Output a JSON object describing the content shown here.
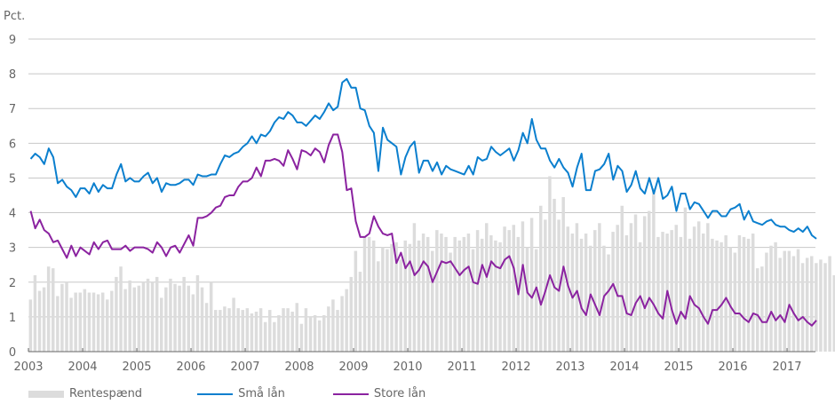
{
  "chart_data": {
    "type": "bar+line",
    "title": "",
    "ylabel": "Pct.",
    "xlabel": "",
    "ylim": [
      0,
      9
    ],
    "yticks": [
      0,
      1,
      2,
      3,
      4,
      5,
      6,
      7,
      8,
      9
    ],
    "grid": true,
    "legend_position": "bottom-left",
    "x_start": "2003-01",
    "x_frequency": "monthly",
    "xtick_labels": [
      "2003",
      "2004",
      "2005",
      "2006",
      "2007",
      "2008",
      "2009",
      "2010",
      "2011",
      "2012",
      "2013",
      "2014",
      "2015",
      "2016",
      "2017"
    ],
    "series": [
      {
        "name": "Rentespænd",
        "type": "bar",
        "color": "#dcdcdc",
        "values": [
          1.5,
          2.2,
          1.75,
          1.85,
          2.45,
          2.4,
          1.6,
          1.95,
          2.0,
          1.55,
          1.7,
          1.7,
          1.8,
          1.7,
          1.7,
          1.65,
          1.7,
          1.5,
          1.75,
          2.15,
          2.45,
          1.8,
          2.05,
          1.85,
          1.9,
          2.0,
          2.1,
          2.0,
          2.15,
          1.55,
          1.85,
          2.1,
          1.95,
          1.9,
          2.15,
          1.9,
          1.65,
          2.2,
          1.85,
          1.4,
          2.0,
          1.2,
          1.2,
          1.3,
          1.25,
          1.55,
          1.25,
          1.2,
          1.25,
          1.1,
          1.15,
          1.25,
          0.85,
          1.2,
          0.85,
          1.05,
          1.25,
          1.25,
          1.15,
          1.4,
          0.8,
          1.25,
          1.0,
          1.05,
          0.9,
          1.05,
          1.3,
          1.5,
          1.2,
          1.6,
          1.8,
          2.15,
          2.9,
          2.3,
          3.3,
          3.3,
          3.2,
          2.6,
          3.0,
          2.95,
          3.1,
          3.15,
          2.65,
          3.2,
          3.1,
          3.7,
          3.2,
          3.4,
          3.3,
          2.9,
          3.5,
          3.4,
          3.3,
          2.85,
          3.3,
          3.2,
          3.3,
          3.4,
          2.95,
          3.5,
          3.25,
          3.7,
          3.35,
          3.2,
          3.15,
          3.6,
          3.5,
          3.65,
          3.3,
          3.75,
          3.0,
          3.85,
          2.95,
          4.2,
          3.8,
          5.05,
          4.4,
          3.8,
          4.45,
          3.6,
          3.4,
          3.7,
          3.25,
          3.4,
          3.05,
          3.5,
          3.7,
          3.05,
          2.8,
          3.45,
          3.65,
          4.2,
          3.35,
          3.7,
          3.95,
          3.15,
          3.9,
          4.05,
          4.7,
          3.3,
          3.45,
          3.4,
          3.5,
          3.65,
          3.3,
          4.15,
          3.25,
          3.6,
          3.75,
          3.4,
          3.7,
          3.25,
          3.2,
          3.15,
          3.35,
          3.0,
          2.85,
          3.35,
          3.3,
          3.25,
          3.4,
          2.4,
          2.45,
          2.85,
          3.05,
          3.15,
          2.7,
          2.9,
          2.9,
          2.75,
          2.95,
          2.55,
          2.7,
          2.75,
          2.55,
          2.65,
          2.55,
          2.75,
          2.2,
          2.35,
          2.7,
          2.55,
          2.85,
          2.75,
          2.4
        ],
        "value_count_note": "monthly 2003-01 to 2017-06"
      },
      {
        "name": "Små lån",
        "type": "line",
        "color": "#0b7fce",
        "values": [
          5.55,
          5.7,
          5.6,
          5.4,
          5.85,
          5.6,
          4.85,
          4.95,
          4.75,
          4.65,
          4.45,
          4.7,
          4.7,
          4.55,
          4.85,
          4.6,
          4.8,
          4.7,
          4.7,
          5.1,
          5.4,
          4.9,
          5.0,
          4.9,
          4.9,
          5.05,
          5.15,
          4.85,
          5.0,
          4.6,
          4.85,
          4.8,
          4.8,
          4.85,
          4.95,
          4.95,
          4.8,
          5.1,
          5.05,
          5.05,
          5.1,
          5.1,
          5.4,
          5.65,
          5.6,
          5.7,
          5.75,
          5.9,
          6.0,
          6.2,
          6.0,
          6.25,
          6.2,
          6.35,
          6.6,
          6.75,
          6.7,
          6.9,
          6.8,
          6.6,
          6.6,
          6.5,
          6.65,
          6.8,
          6.7,
          6.9,
          7.15,
          6.95,
          7.05,
          7.75,
          7.85,
          7.6,
          7.6,
          7.0,
          6.95,
          6.5,
          6.3,
          5.2,
          6.45,
          6.1,
          6.0,
          5.9,
          5.1,
          5.6,
          5.9,
          6.05,
          5.15,
          5.5,
          5.5,
          5.2,
          5.45,
          5.1,
          5.35,
          5.25,
          5.2,
          5.15,
          5.1,
          5.35,
          5.1,
          5.6,
          5.5,
          5.55,
          5.9,
          5.75,
          5.65,
          5.75,
          5.85,
          5.5,
          5.8,
          6.3,
          6.0,
          6.7,
          6.1,
          5.85,
          5.85,
          5.5,
          5.3,
          5.55,
          5.3,
          5.15,
          4.75,
          5.3,
          5.7,
          4.65,
          4.65,
          5.2,
          5.25,
          5.4,
          5.7,
          4.95,
          5.35,
          5.2,
          4.6,
          4.8,
          5.2,
          4.7,
          4.55,
          5.0,
          4.55,
          5.0,
          4.4,
          4.5,
          4.75,
          4.05,
          4.55,
          4.55,
          4.1,
          4.3,
          4.25,
          4.05,
          3.85,
          4.05,
          4.05,
          3.9,
          3.9,
          4.1,
          4.15,
          4.25,
          3.8,
          4.05,
          3.75,
          3.7,
          3.65,
          3.75,
          3.8,
          3.65,
          3.6,
          3.6,
          3.5,
          3.45,
          3.55,
          3.45,
          3.6,
          3.35,
          3.25
        ],
        "value_count_note": "monthly 2003-01 to 2017-06"
      },
      {
        "name": "Store lån",
        "type": "line",
        "color": "#8b23a0",
        "values": [
          4.05,
          3.55,
          3.8,
          3.5,
          3.4,
          3.15,
          3.2,
          2.95,
          2.7,
          3.05,
          2.75,
          3.0,
          2.9,
          2.8,
          3.15,
          2.95,
          3.15,
          3.2,
          2.95,
          2.95,
          2.95,
          3.05,
          2.9,
          3.0,
          3.0,
          3.0,
          2.95,
          2.85,
          3.15,
          3.0,
          2.75,
          3.0,
          3.05,
          2.85,
          3.1,
          3.35,
          3.05,
          3.85,
          3.85,
          3.9,
          4.0,
          4.15,
          4.2,
          4.45,
          4.5,
          4.5,
          4.75,
          4.9,
          4.9,
          5.0,
          5.3,
          5.05,
          5.5,
          5.5,
          5.55,
          5.5,
          5.35,
          5.8,
          5.55,
          5.25,
          5.8,
          5.75,
          5.65,
          5.85,
          5.75,
          5.45,
          5.95,
          6.25,
          6.25,
          5.75,
          4.65,
          4.7,
          3.75,
          3.3,
          3.3,
          3.4,
          3.9,
          3.6,
          3.4,
          3.35,
          3.4,
          2.55,
          2.85,
          2.4,
          2.6,
          2.2,
          2.35,
          2.6,
          2.45,
          2.0,
          2.3,
          2.6,
          2.55,
          2.6,
          2.4,
          2.2,
          2.35,
          2.45,
          2.0,
          1.95,
          2.5,
          2.15,
          2.6,
          2.45,
          2.4,
          2.65,
          2.75,
          2.4,
          1.65,
          2.5,
          1.7,
          1.55,
          1.85,
          1.35,
          1.75,
          2.2,
          1.85,
          1.75,
          2.45,
          1.9,
          1.55,
          1.75,
          1.25,
          1.05,
          1.65,
          1.35,
          1.05,
          1.6,
          1.75,
          1.95,
          1.6,
          1.6,
          1.1,
          1.05,
          1.4,
          1.6,
          1.25,
          1.55,
          1.35,
          1.1,
          0.95,
          1.75,
          1.2,
          0.8,
          1.15,
          0.95,
          1.6,
          1.35,
          1.25,
          1.0,
          0.8,
          1.2,
          1.2,
          1.35,
          1.55,
          1.3,
          1.1,
          1.1,
          0.95,
          0.85,
          1.1,
          1.05,
          0.85,
          0.85,
          1.15,
          0.9,
          1.05,
          0.85,
          1.35,
          1.1,
          0.9,
          1.0,
          0.85,
          0.75,
          0.9
        ],
        "value_count_note": "monthly 2003-01 to 2017-06"
      }
    ]
  },
  "legend": {
    "items": [
      {
        "label": "Rentespænd",
        "kind": "bar",
        "color": "#dcdcdc"
      },
      {
        "label": "Små lån",
        "kind": "line",
        "color": "#0b7fce"
      },
      {
        "label": "Store lån",
        "kind": "line",
        "color": "#8b23a0"
      }
    ]
  }
}
